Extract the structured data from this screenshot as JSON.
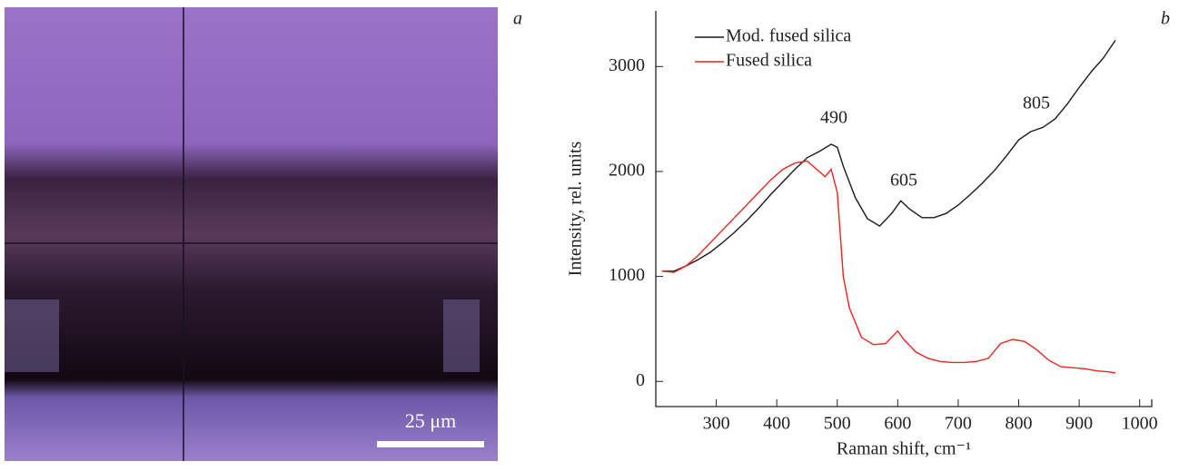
{
  "panel_a": {
    "label": "a",
    "scale_bar": "25 μm"
  },
  "chart_data": {
    "type": "line",
    "panel_label": "b",
    "x_label": "Raman shift, cm⁻¹",
    "y_label": "Intensity, rel. units",
    "xlim": [
      200,
      1020
    ],
    "ylim": [
      -240,
      3530
    ],
    "xticks": [
      300,
      400,
      500,
      600,
      700,
      800,
      900,
      1000
    ],
    "yticks": [
      0,
      1000,
      2000,
      3000
    ],
    "annotations": [
      "490",
      "605",
      "805"
    ],
    "series": [
      {
        "name": "Mod. fused silica",
        "color": "#1a1a1a",
        "x": [
          210,
          230,
          250,
          270,
          290,
          310,
          330,
          350,
          370,
          390,
          410,
          430,
          450,
          470,
          490,
          500,
          510,
          530,
          550,
          570,
          590,
          605,
          620,
          640,
          660,
          680,
          700,
          720,
          740,
          760,
          780,
          800,
          820,
          840,
          860,
          880,
          900,
          920,
          940,
          960
        ],
        "values": [
          1050,
          1050,
          1100,
          1160,
          1230,
          1320,
          1420,
          1530,
          1650,
          1780,
          1900,
          2020,
          2130,
          2190,
          2260,
          2230,
          2050,
          1750,
          1550,
          1480,
          1600,
          1720,
          1640,
          1560,
          1560,
          1600,
          1680,
          1780,
          1890,
          2010,
          2150,
          2300,
          2380,
          2420,
          2500,
          2640,
          2800,
          2950,
          3080,
          3250
        ]
      },
      {
        "name": "Fused silica",
        "color": "#e8251f",
        "x": [
          210,
          230,
          250,
          270,
          290,
          310,
          330,
          350,
          370,
          390,
          410,
          430,
          450,
          470,
          480,
          490,
          500,
          510,
          520,
          540,
          560,
          580,
          600,
          610,
          630,
          650,
          670,
          690,
          710,
          730,
          750,
          770,
          790,
          810,
          830,
          850,
          870,
          890,
          910,
          930,
          950,
          960
        ],
        "values": [
          1050,
          1040,
          1100,
          1200,
          1320,
          1440,
          1560,
          1680,
          1800,
          1920,
          2020,
          2080,
          2100,
          2000,
          1950,
          2020,
          1800,
          1000,
          700,
          420,
          350,
          360,
          480,
          400,
          280,
          220,
          190,
          180,
          180,
          190,
          220,
          360,
          400,
          380,
          300,
          200,
          140,
          130,
          120,
          100,
          90,
          80
        ]
      }
    ]
  }
}
